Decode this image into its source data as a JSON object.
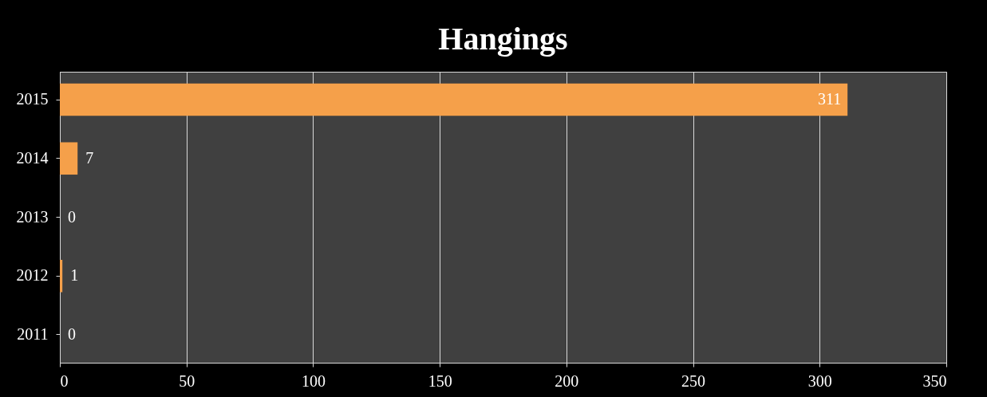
{
  "chart_data": {
    "type": "bar",
    "orientation": "horizontal",
    "title": "Hangings",
    "categories": [
      "2015",
      "2014",
      "2013",
      "2012",
      "2011"
    ],
    "values": [
      311,
      7,
      0,
      1,
      0
    ],
    "color": "#f5a04a",
    "xlim": [
      0,
      350
    ],
    "xticks": [
      0,
      50,
      100,
      150,
      200,
      250,
      300,
      350
    ],
    "grid": "x",
    "data_labels": true
  }
}
